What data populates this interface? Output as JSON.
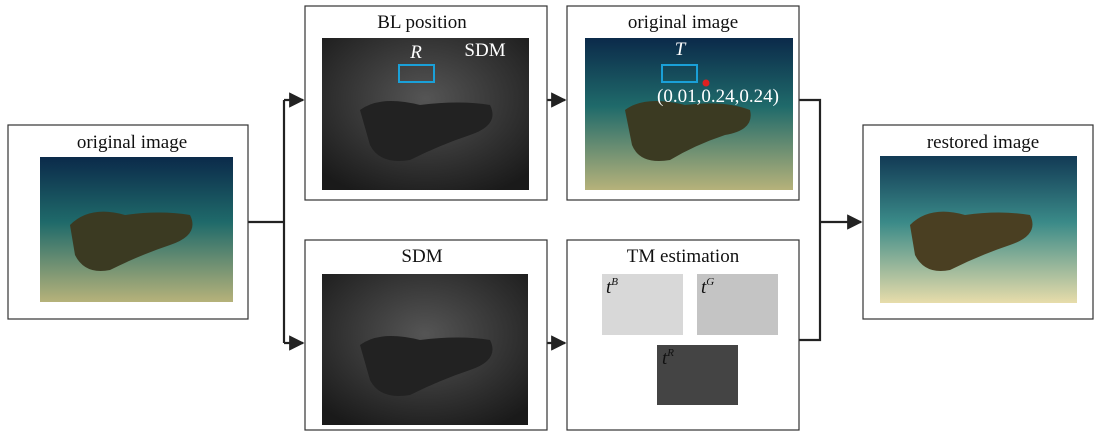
{
  "nodes": [
    {
      "title": "original image"
    },
    {
      "title": "BL position",
      "labels": [
        "R",
        "SDM"
      ]
    },
    {
      "title": "original image",
      "labels": [
        "T",
        "(0.01,0.24,0.24)"
      ]
    },
    {
      "title": "restored image"
    },
    {
      "title": "SDM"
    },
    {
      "title": "TM estimation",
      "maps": [
        {
          "base": "t",
          "sup": "B"
        },
        {
          "base": "t",
          "sup": "G"
        },
        {
          "base": "t",
          "sup": "R"
        }
      ]
    }
  ]
}
